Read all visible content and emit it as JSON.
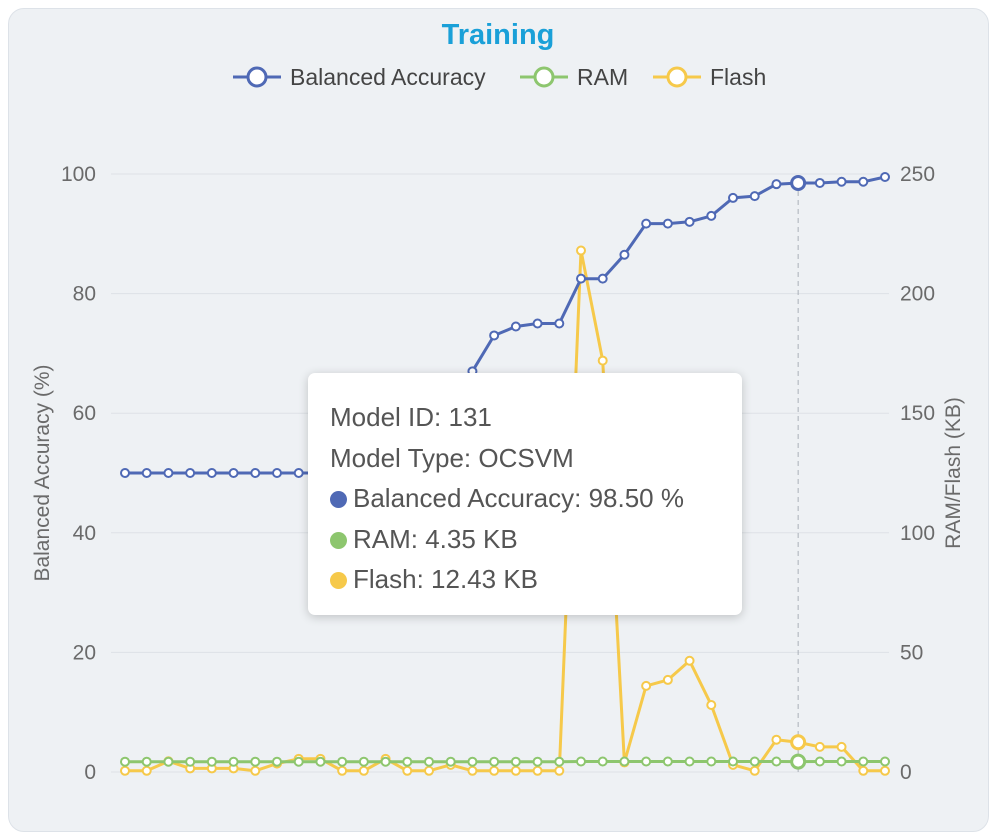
{
  "panel": {
    "title": "Training"
  },
  "chart_data": {
    "type": "line",
    "title": "Training",
    "x": [
      1,
      2,
      3,
      4,
      5,
      6,
      7,
      8,
      9,
      10,
      11,
      12,
      13,
      14,
      15,
      16,
      17,
      18,
      19,
      20,
      21,
      22,
      23,
      24,
      25,
      26,
      27,
      28,
      29,
      30,
      31,
      32,
      33,
      34,
      35,
      36
    ],
    "series": [
      {
        "name": "Balanced Accuracy",
        "axis": "left",
        "color": "#4f69b5",
        "values": [
          50,
          50,
          50,
          50,
          50,
          50,
          50,
          50,
          50,
          50,
          50,
          50,
          50,
          52,
          57,
          62,
          67,
          73,
          74.5,
          75,
          75,
          82.5,
          82.5,
          86.5,
          91.7,
          91.7,
          92,
          93,
          96,
          96.3,
          98.3,
          98.5,
          98.5,
          98.7,
          98.7,
          99.5
        ]
      },
      {
        "name": "RAM",
        "axis": "right",
        "color": "#8dc66e",
        "values": [
          4.3,
          4.3,
          4.3,
          4.3,
          4.3,
          4.3,
          4.3,
          4.3,
          4.3,
          4.3,
          4.3,
          4.3,
          4.3,
          4.3,
          4.3,
          4.3,
          4.3,
          4.3,
          4.3,
          4.3,
          4.3,
          4.4,
          4.4,
          4.4,
          4.4,
          4.4,
          4.4,
          4.4,
          4.4,
          4.4,
          4.4,
          4.35,
          4.4,
          4.4,
          4.4,
          4.4
        ]
      },
      {
        "name": "Flash",
        "axis": "right",
        "color": "#f6c94a",
        "values": [
          0.5,
          0.5,
          4.5,
          1.5,
          1.5,
          1.5,
          0.5,
          3.5,
          5.5,
          5.5,
          0.5,
          0.5,
          5.5,
          0.5,
          0.5,
          3,
          0.5,
          0.5,
          0.5,
          0.5,
          0.5,
          218,
          172,
          4,
          36,
          38.5,
          46.5,
          28,
          3,
          0.5,
          13.5,
          12.43,
          10.5,
          10.5,
          0.5,
          0.5
        ]
      }
    ],
    "y_left": {
      "label": "Balanced Accuracy (%)",
      "range": [
        0,
        100
      ],
      "ticks": [
        0,
        20,
        40,
        60,
        80,
        100
      ]
    },
    "y_right": {
      "label": "RAM/Flash (KB)",
      "range": [
        0,
        250
      ],
      "ticks": [
        0,
        50,
        100,
        150,
        200,
        250
      ]
    },
    "grid": true,
    "legend": {
      "position": "top-center",
      "items": [
        "Balanced Accuracy",
        "RAM",
        "Flash"
      ]
    },
    "hover_index": 31
  },
  "tooltip": {
    "model_id": "Model ID: 131",
    "model_type": "Model Type: OCSVM",
    "accuracy": "Balanced Accuracy: 98.50 %",
    "ram": "RAM: 4.35 KB",
    "flash": "Flash: 12.43 KB",
    "accuracy_color": "#4f69b5",
    "ram_color": "#8dc66e",
    "flash_color": "#f6c94a"
  }
}
